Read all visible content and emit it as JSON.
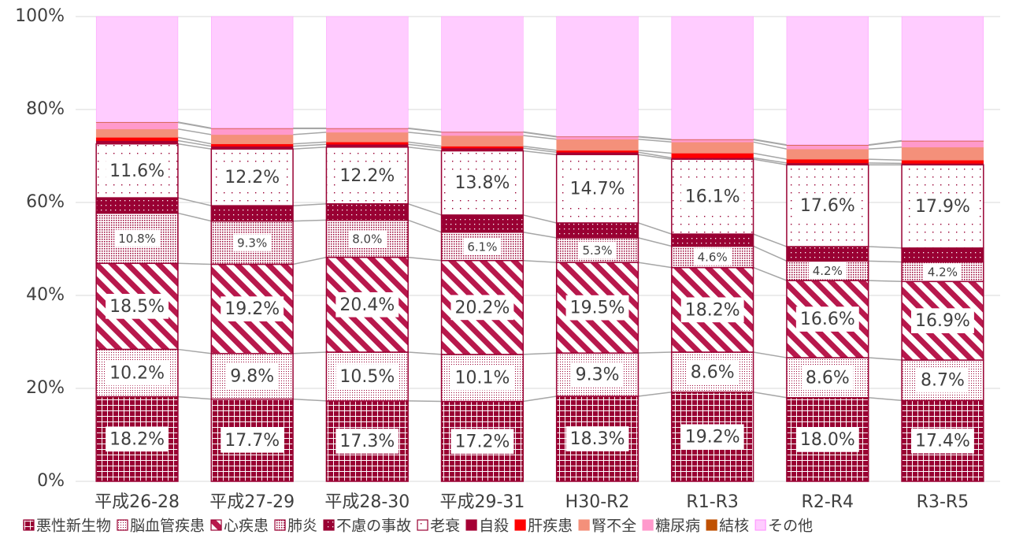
{
  "chart_data": {
    "type": "stacked_bar",
    "categories": [
      "平成26-28",
      "平成27-29",
      "平成28-30",
      "平成29-31",
      "H30-R2",
      "R1-R3",
      "R2-R4",
      "R3-R5"
    ],
    "series": [
      {
        "name": "悪性新生物",
        "color": "#990033",
        "values": [
          18.2,
          17.7,
          17.3,
          17.2,
          18.3,
          19.2,
          18.0,
          17.4
        ],
        "value_labels": [
          "18.2%",
          "17.7%",
          "17.3%",
          "17.2%",
          "18.3%",
          "19.2%",
          "18.0%",
          "17.4%"
        ]
      },
      {
        "name": "脳血管疾患",
        "color": "#990033",
        "values": [
          10.2,
          9.8,
          10.5,
          10.1,
          9.3,
          8.6,
          8.6,
          8.7
        ],
        "value_labels": [
          "10.2%",
          "9.8%",
          "10.5%",
          "10.1%",
          "9.3%",
          "8.6%",
          "8.6%",
          "8.7%"
        ]
      },
      {
        "name": "心疾患",
        "color": "#b8184c",
        "values": [
          18.5,
          19.2,
          20.4,
          20.2,
          19.5,
          18.2,
          16.6,
          16.9
        ],
        "value_labels": [
          "18.5%",
          "19.2%",
          "20.4%",
          "20.2%",
          "19.5%",
          "18.2%",
          "16.6%",
          "16.9%"
        ]
      },
      {
        "name": "肺炎",
        "color": "#990033",
        "values": [
          10.8,
          9.3,
          8.0,
          6.1,
          5.3,
          4.6,
          4.2,
          4.2
        ],
        "value_labels": [
          "10.8%",
          "9.3%",
          "8.0%",
          "6.1%",
          "5.3%",
          "4.6%",
          "4.2%",
          "4.2%"
        ]
      },
      {
        "name": "不慮の事故",
        "color": "#990033",
        "values": [
          3.3,
          3.3,
          3.5,
          3.7,
          3.2,
          2.6,
          3.1,
          3.0
        ]
      },
      {
        "name": "老衰",
        "color": "#990033",
        "values": [
          11.6,
          12.2,
          12.2,
          13.8,
          14.7,
          16.1,
          17.6,
          17.9
        ],
        "value_labels": [
          "11.6%",
          "12.2%",
          "12.2%",
          "13.8%",
          "14.7%",
          "16.1%",
          "17.6%",
          "17.9%"
        ]
      },
      {
        "name": "自殺",
        "color": "#a50034",
        "values": [
          0.7,
          0.6,
          0.6,
          0.6,
          0.5,
          0.3,
          0.4,
          0.3
        ]
      },
      {
        "name": "肝疾患",
        "color": "#ff0000",
        "values": [
          0.7,
          0.5,
          0.5,
          0.4,
          0.4,
          1.0,
          0.8,
          0.7
        ]
      },
      {
        "name": "腎不全",
        "color": "#f4907a",
        "values": [
          1.8,
          2.0,
          2.1,
          2.3,
          2.4,
          2.4,
          2.2,
          2.8
        ]
      },
      {
        "name": "糖尿病",
        "color": "#ff99cc",
        "values": [
          1.4,
          1.3,
          0.8,
          0.7,
          0.5,
          0.5,
          0.8,
          1.3
        ]
      },
      {
        "name": "結核",
        "color": "#c05000",
        "values": [
          0.1,
          0.1,
          0.1,
          0.1,
          0.1,
          0.1,
          0.1,
          0.1
        ]
      },
      {
        "name": "その他",
        "color": "#ffccff",
        "values": [
          22.7,
          24.0,
          24.0,
          24.8,
          25.8,
          26.4,
          27.6,
          26.7
        ]
      }
    ],
    "ylim": [
      0,
      100
    ],
    "yticks": [
      {
        "value": 0,
        "label": "0%"
      },
      {
        "value": 20,
        "label": "20%"
      },
      {
        "value": 40,
        "label": "40%"
      },
      {
        "value": 60,
        "label": "60%"
      },
      {
        "value": 80,
        "label": "80%"
      },
      {
        "value": 100,
        "label": "100%"
      }
    ],
    "grid": true
  }
}
